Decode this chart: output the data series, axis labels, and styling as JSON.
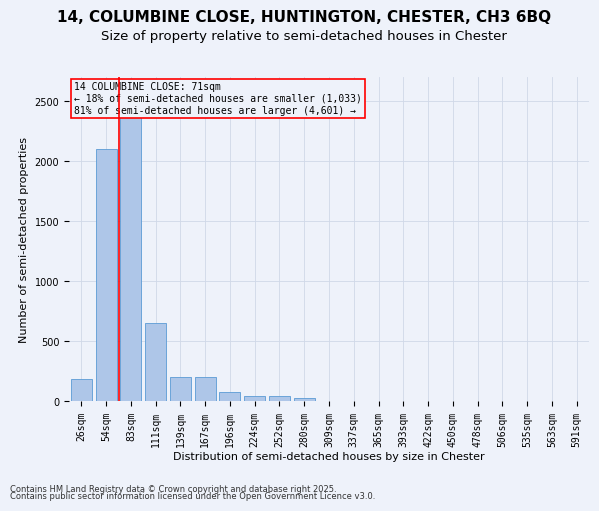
{
  "title_line1": "14, COLUMBINE CLOSE, HUNTINGTON, CHESTER, CH3 6BQ",
  "title_line2": "Size of property relative to semi-detached houses in Chester",
  "xlabel": "Distribution of semi-detached houses by size in Chester",
  "ylabel": "Number of semi-detached properties",
  "categories": [
    "26sqm",
    "54sqm",
    "83sqm",
    "111sqm",
    "139sqm",
    "167sqm",
    "196sqm",
    "224sqm",
    "252sqm",
    "280sqm",
    "309sqm",
    "337sqm",
    "365sqm",
    "393sqm",
    "422sqm",
    "450sqm",
    "478sqm",
    "506sqm",
    "535sqm",
    "563sqm",
    "591sqm"
  ],
  "values": [
    185,
    2100,
    2420,
    650,
    200,
    200,
    75,
    45,
    45,
    30,
    0,
    0,
    0,
    0,
    0,
    0,
    0,
    0,
    0,
    0,
    0
  ],
  "bar_color": "#aec6e8",
  "bar_edge_color": "#5b9bd5",
  "grid_color": "#d0d8e8",
  "background_color": "#eef2fa",
  "vline_color": "red",
  "vline_position": 1.5,
  "annotation_title": "14 COLUMBINE CLOSE: 71sqm",
  "annotation_line1": "← 18% of semi-detached houses are smaller (1,033)",
  "annotation_line2": "81% of semi-detached houses are larger (4,601) →",
  "annotation_box_color": "red",
  "footnote_line1": "Contains HM Land Registry data © Crown copyright and database right 2025.",
  "footnote_line2": "Contains public sector information licensed under the Open Government Licence v3.0.",
  "ylim_max": 2700,
  "yticks": [
    0,
    500,
    1000,
    1500,
    2000,
    2500
  ],
  "title_fontsize": 11,
  "subtitle_fontsize": 9.5,
  "ylabel_fontsize": 8,
  "xlabel_fontsize": 8,
  "tick_fontsize": 7,
  "annot_fontsize": 7,
  "footnote_fontsize": 6
}
